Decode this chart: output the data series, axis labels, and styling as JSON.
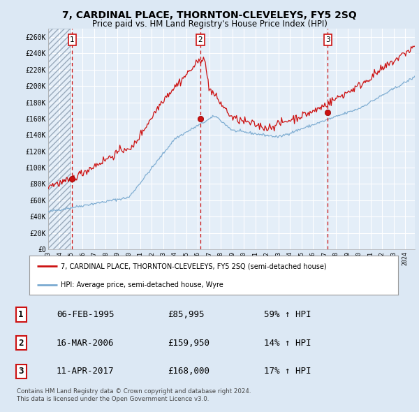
{
  "title": "7, CARDINAL PLACE, THORNTON-CLEVELEYS, FY5 2SQ",
  "subtitle": "Price paid vs. HM Land Registry's House Price Index (HPI)",
  "title_fontsize": 10,
  "subtitle_fontsize": 8.5,
  "bg_color": "#dce8f4",
  "plot_bg_color": "#e4eef8",
  "grid_color": "#ffffff",
  "hpi_color": "#7aaad0",
  "price_color": "#cc1111",
  "ylim": [
    0,
    270000
  ],
  "yticks": [
    0,
    20000,
    40000,
    60000,
    80000,
    100000,
    120000,
    140000,
    160000,
    180000,
    200000,
    220000,
    240000,
    260000
  ],
  "ytick_labels": [
    "£0",
    "£20K",
    "£40K",
    "£60K",
    "£80K",
    "£100K",
    "£120K",
    "£140K",
    "£160K",
    "£180K",
    "£200K",
    "£220K",
    "£240K",
    "£260K"
  ],
  "xmin": 1993.0,
  "xmax": 2024.83,
  "sale_dates": [
    1995.09,
    2006.21,
    2017.28
  ],
  "sale_prices": [
    85995,
    159950,
    168000
  ],
  "sale_labels": [
    "1",
    "2",
    "3"
  ],
  "legend_line1": "7, CARDINAL PLACE, THORNTON-CLEVELEYS, FY5 2SQ (semi-detached house)",
  "legend_line2": "HPI: Average price, semi-detached house, Wyre",
  "table_data": [
    [
      "1",
      "06-FEB-1995",
      "£85,995",
      "59% ↑ HPI"
    ],
    [
      "2",
      "16-MAR-2006",
      "£159,950",
      "14% ↑ HPI"
    ],
    [
      "3",
      "11-APR-2017",
      "£168,000",
      "17% ↑ HPI"
    ]
  ],
  "footnote": "Contains HM Land Registry data © Crown copyright and database right 2024.\nThis data is licensed under the Open Government Licence v3.0."
}
